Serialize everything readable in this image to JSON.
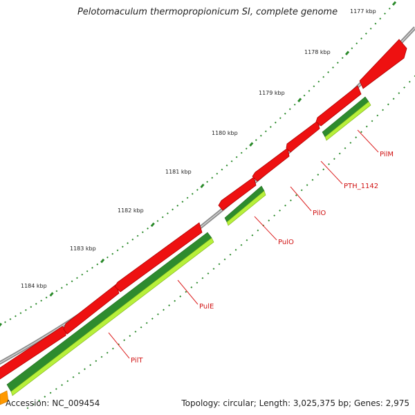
{
  "title": "Pelotomaculum thermopropionicum SI, complete genome",
  "footer": {
    "accession": "Accession: NC_009454",
    "summary": "Topology: circular; Length: 3,025,375 bp; Genes: 2,975"
  },
  "ticks": [
    {
      "label": "1177 kbp"
    },
    {
      "label": "1178 kbp"
    },
    {
      "label": "1179 kbp"
    },
    {
      "label": "1180 kbp"
    },
    {
      "label": "1181 kbp"
    },
    {
      "label": "1182 kbp"
    },
    {
      "label": "1183 kbp"
    },
    {
      "label": "1184 kbp"
    }
  ],
  "genes": [
    {
      "name": "PilM"
    },
    {
      "name": "PTH_1142"
    },
    {
      "name": "PilO"
    },
    {
      "name": "PulO"
    },
    {
      "name": "PulE"
    },
    {
      "name": "PilT"
    }
  ],
  "colors": {
    "backbone": "#8c8c8c",
    "cds": "#ee1111",
    "cds_dark": "#b00000",
    "gene_green": "#2e8b2e",
    "gene_lime": "#b7f03a",
    "tick": "#2a8a2a",
    "label_line": "#dd2222",
    "orange": "#ff9900"
  }
}
